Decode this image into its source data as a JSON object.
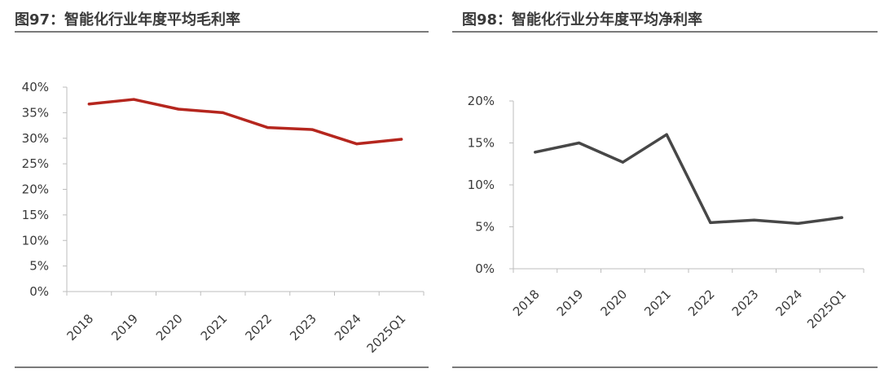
{
  "charts": [
    {
      "title": "图97：智能化行业年度平均毛利率",
      "color": "#b5261e"
    },
    {
      "title": "图98：智能化行业分年度平均净利率",
      "color": "#474747"
    }
  ],
  "chart_data": [
    {
      "type": "line",
      "title": "图97：智能化行业年度平均毛利率",
      "categories": [
        "2018",
        "2019",
        "2020",
        "2021",
        "2022",
        "2023",
        "2024",
        "2025Q1"
      ],
      "values": [
        36.7,
        37.6,
        35.7,
        35.0,
        32.1,
        31.7,
        28.9,
        29.8
      ],
      "ylim": [
        0,
        40
      ],
      "yticks": [
        "0%",
        "5%",
        "10%",
        "15%",
        "20%",
        "25%",
        "30%",
        "35%",
        "40%"
      ],
      "grid": false,
      "legend": "none"
    },
    {
      "type": "line",
      "title": "图98：智能化行业分年度平均净利率",
      "categories": [
        "2018",
        "2019",
        "2020",
        "2021",
        "2022",
        "2023",
        "2024",
        "2025Q1"
      ],
      "values": [
        13.9,
        15.0,
        12.7,
        16.0,
        5.5,
        5.8,
        5.4,
        6.1
      ],
      "ylim": [
        0,
        20
      ],
      "yticks": [
        "0%",
        "5%",
        "10%",
        "15%",
        "20%"
      ],
      "grid": false,
      "legend": "none"
    }
  ]
}
